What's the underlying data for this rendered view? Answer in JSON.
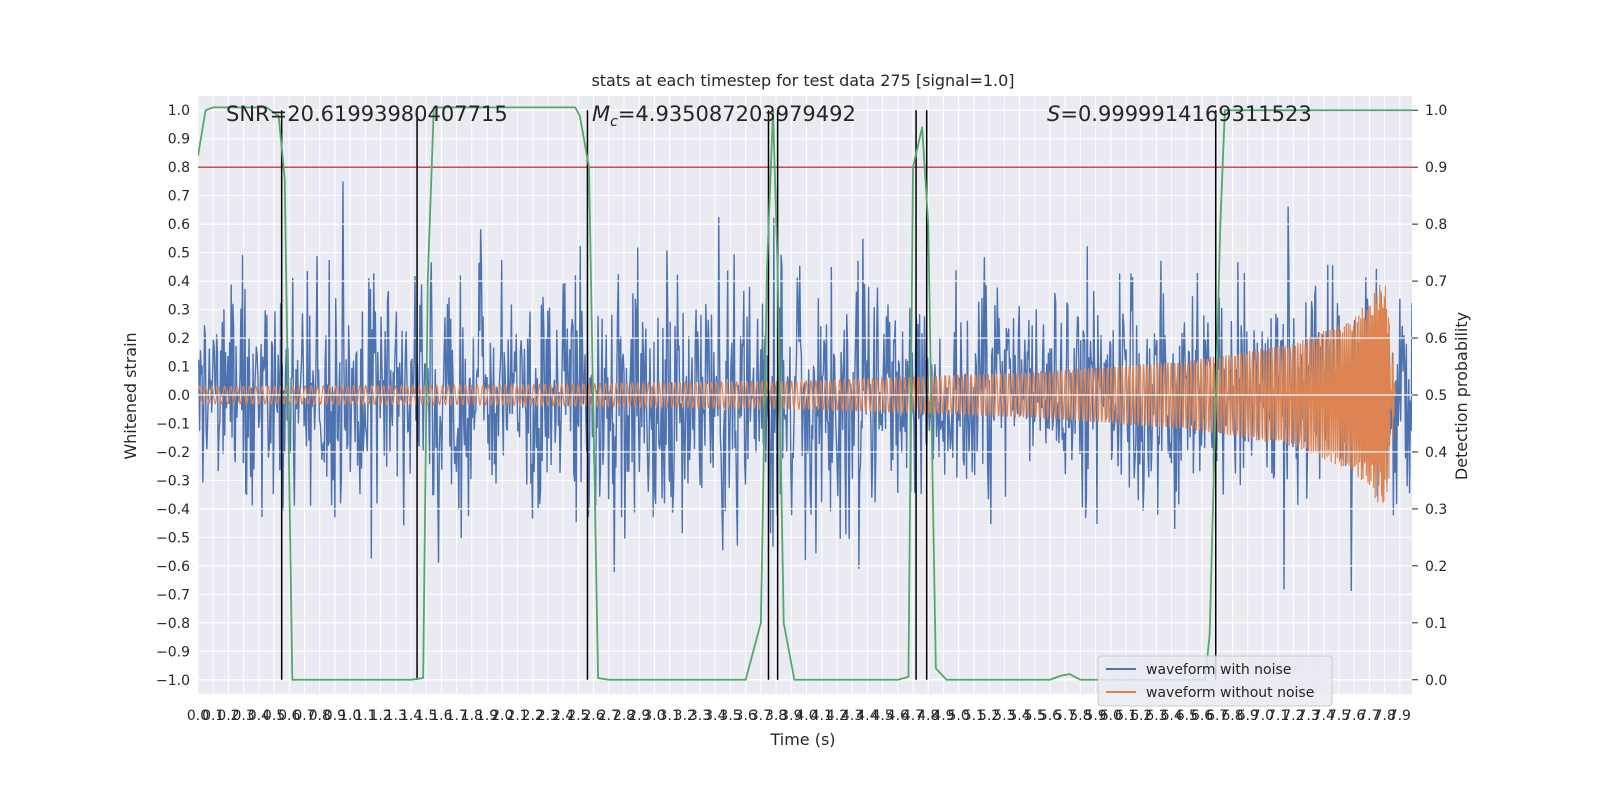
{
  "chart_data": {
    "type": "line",
    "title": "stats at each timestep for test data 275 [signal=1.0]",
    "xlabel": "Time (s)",
    "ylabel": "Whitened strain",
    "y2label": "Detection probability",
    "xlim": [
      0.0,
      7.98
    ],
    "ylim": [
      -1.05,
      1.05
    ],
    "y2lim": [
      -0.025,
      1.025
    ],
    "grid": true,
    "x_ticks": [
      "0.0",
      "0.1",
      "0.2",
      "0.3",
      "0.4",
      "0.5",
      "0.6",
      "0.7",
      "0.8",
      "0.9",
      "1.0",
      "1.1",
      "1.2",
      "1.3",
      "1.4",
      "1.5",
      "1.6",
      "1.7",
      "1.8",
      "1.9",
      "2.0",
      "2.1",
      "2.2",
      "2.3",
      "2.4",
      "2.5",
      "2.6",
      "2.7",
      "2.8",
      "2.9",
      "3.0",
      "3.1",
      "3.2",
      "3.3",
      "3.4",
      "3.5",
      "3.6",
      "3.7",
      "3.8",
      "3.9",
      "4.0",
      "4.1",
      "4.2",
      "4.3",
      "4.4",
      "4.5",
      "4.6",
      "4.7",
      "4.8",
      "4.9",
      "5.0",
      "5.1",
      "5.2",
      "5.3",
      "5.4",
      "5.5",
      "5.6",
      "5.7",
      "5.8",
      "5.9",
      "6.0",
      "6.1",
      "6.2",
      "6.3",
      "6.4",
      "6.5",
      "6.6",
      "6.7",
      "6.8",
      "6.9",
      "7.0",
      "7.1",
      "7.2",
      "7.3",
      "7.4",
      "7.5",
      "7.6",
      "7.7",
      "7.8",
      "7.9"
    ],
    "y_ticks": [
      "−1.0",
      "−0.9",
      "−0.8",
      "−0.7",
      "−0.6",
      "−0.5",
      "−0.4",
      "−0.3",
      "−0.2",
      "−0.1",
      "0.0",
      "0.1",
      "0.2",
      "0.3",
      "0.4",
      "0.5",
      "0.6",
      "0.7",
      "0.8",
      "0.9",
      "1.0"
    ],
    "y2_ticks": [
      "0.0",
      "0.1",
      "0.2",
      "0.3",
      "0.4",
      "0.5",
      "0.6",
      "0.7",
      "0.8",
      "0.9",
      "1.0"
    ],
    "annotations": [
      {
        "label": "SNR",
        "value": "=20.61993980407715",
        "x": 0.19
      },
      {
        "label": "M",
        "sub": "c",
        "value": "=4.935087203979492",
        "x": 2.6
      },
      {
        "label": "S",
        "value": "=0.9999914169311523",
        "x": 5.6
      }
    ],
    "legend": {
      "placement": "lower-right",
      "entries": [
        "waveform with noise",
        "waveform without noise"
      ]
    },
    "series": [
      {
        "name": "waveform with noise",
        "color": "#4c72b0",
        "axis": "left",
        "kind": "noise",
        "amplitude_range": [
          -0.92,
          1.0
        ]
      },
      {
        "name": "waveform without noise",
        "color": "#dd8452",
        "axis": "left",
        "kind": "chirp",
        "envelope": [
          [
            0.0,
            0.03
          ],
          [
            2.0,
            0.035
          ],
          [
            4.0,
            0.05
          ],
          [
            5.5,
            0.08
          ],
          [
            6.5,
            0.12
          ],
          [
            7.2,
            0.18
          ],
          [
            7.6,
            0.27
          ],
          [
            7.8,
            0.41
          ],
          [
            7.85,
            0.2
          ],
          [
            7.87,
            0.0
          ],
          [
            7.98,
            0.0
          ]
        ]
      },
      {
        "name": "detection probability",
        "color": "#55a868",
        "axis": "right",
        "points": [
          [
            0.0,
            0.92
          ],
          [
            0.05,
            1.0
          ],
          [
            0.1,
            1.005
          ],
          [
            0.45,
            1.005
          ],
          [
            0.53,
            0.99
          ],
          [
            0.57,
            0.88
          ],
          [
            0.62,
            0.0
          ],
          [
            1.4,
            0.0
          ],
          [
            1.48,
            0.003
          ],
          [
            1.51,
            0.7
          ],
          [
            1.55,
            1.005
          ],
          [
            2.48,
            1.005
          ],
          [
            2.51,
            0.99
          ],
          [
            2.57,
            0.9
          ],
          [
            2.63,
            0.003
          ],
          [
            2.7,
            0.0
          ],
          [
            3.6,
            0.0
          ],
          [
            3.7,
            0.1
          ],
          [
            3.74,
            0.72
          ],
          [
            3.78,
            1.0
          ],
          [
            3.81,
            0.72
          ],
          [
            3.85,
            0.1
          ],
          [
            3.92,
            0.0
          ],
          [
            4.6,
            0.0
          ],
          [
            4.67,
            0.005
          ],
          [
            4.7,
            0.9
          ],
          [
            4.76,
            0.97
          ],
          [
            4.8,
            0.8
          ],
          [
            4.85,
            0.02
          ],
          [
            4.92,
            0.0
          ],
          [
            5.6,
            0.0
          ],
          [
            5.67,
            0.007
          ],
          [
            5.73,
            0.01
          ],
          [
            5.8,
            0.0
          ],
          [
            6.62,
            0.0
          ],
          [
            6.65,
            0.08
          ],
          [
            6.72,
            0.8
          ],
          [
            6.75,
            1.0
          ],
          [
            7.98,
            1.0
          ]
        ]
      },
      {
        "name": "threshold",
        "color": "#c44e52",
        "axis": "right",
        "kind": "hline",
        "value": 0.9
      }
    ],
    "vertical_markers_s": [
      0.55,
      1.44,
      2.56,
      3.75,
      3.81,
      4.72,
      4.79,
      6.69
    ]
  }
}
